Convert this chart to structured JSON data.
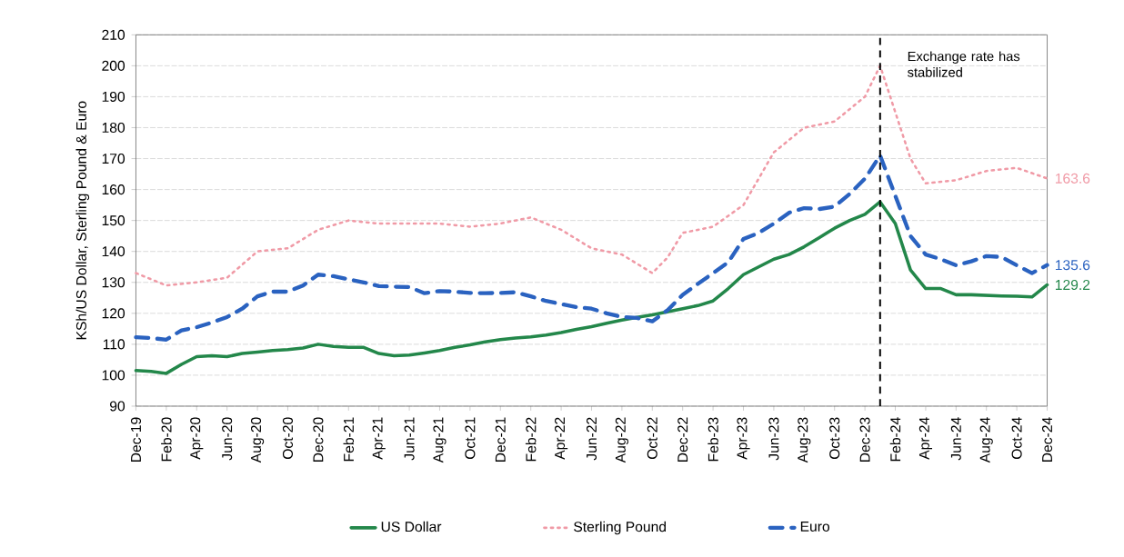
{
  "chart_data": {
    "type": "line",
    "ylabel": "KSh/US Dollar, Sterling Pound & Euro",
    "x": [
      "2019-12",
      "2020-01",
      "2020-02",
      "2020-03",
      "2020-04",
      "2020-05",
      "2020-06",
      "2020-07",
      "2020-08",
      "2020-09",
      "2020-10",
      "2020-11",
      "2020-12",
      "2021-01",
      "2021-02",
      "2021-03",
      "2021-04",
      "2021-05",
      "2021-06",
      "2021-07",
      "2021-08",
      "2021-09",
      "2021-10",
      "2021-11",
      "2021-12",
      "2022-01",
      "2022-02",
      "2022-03",
      "2022-04",
      "2022-05",
      "2022-06",
      "2022-07",
      "2022-08",
      "2022-09",
      "2022-10",
      "2022-11",
      "2022-12",
      "2023-01",
      "2023-02",
      "2023-03",
      "2023-04",
      "2023-05",
      "2023-06",
      "2023-07",
      "2023-08",
      "2023-09",
      "2023-10",
      "2023-11",
      "2023-12",
      "2024-01",
      "2024-02",
      "2024-03",
      "2024-04",
      "2024-05",
      "2024-06",
      "2024-07",
      "2024-08",
      "2024-09",
      "2024-10",
      "2024-11",
      "2024-12"
    ],
    "series": [
      {
        "name": "US Dollar",
        "color": "#23874a",
        "line_style": "solid",
        "values": [
          101.5,
          101.2,
          100.6,
          103.5,
          106,
          106.3,
          106,
          107,
          107.5,
          108,
          108.3,
          108.8,
          110,
          109.3,
          109,
          109,
          107,
          106.3,
          106.5,
          107.2,
          108,
          109,
          109.8,
          110.8,
          111.5,
          112,
          112.4,
          113,
          113.8,
          114.8,
          115.7,
          116.8,
          117.8,
          118.7,
          119.5,
          120.5,
          121.5,
          122.5,
          124,
          128,
          132.5,
          135,
          137.5,
          139,
          141.5,
          144.5,
          147.5,
          150,
          152,
          156,
          149,
          134,
          128,
          128,
          126,
          126,
          125.8,
          125.6,
          125.5,
          125.3,
          129.2
        ],
        "value_labels": [
          null,
          null,
          null,
          null,
          null,
          null,
          null,
          null,
          null,
          null,
          null,
          null,
          null,
          null,
          null,
          null,
          null,
          null,
          null,
          null,
          null,
          null,
          null,
          null,
          null,
          null,
          null,
          null,
          null,
          null,
          null,
          null,
          null,
          null,
          null,
          null,
          null,
          null,
          null,
          null,
          null,
          null,
          null,
          null,
          null,
          null,
          null,
          null,
          null,
          null,
          null,
          null,
          null,
          null,
          null,
          null,
          null,
          null,
          null,
          null,
          "129.2"
        ]
      },
      {
        "name": "Sterling Pound",
        "color": "#f09aa6",
        "line_style": "dotted",
        "x": [
          "2019-12",
          "2020-02",
          "2020-04",
          "2020-06",
          "2020-08",
          "2020-10",
          "2020-12",
          "2021-02",
          "2021-04",
          "2021-06",
          "2021-08",
          "2021-10",
          "2021-12",
          "2022-02",
          "2022-04",
          "2022-06",
          "2022-08",
          "2022-10",
          "2022-11",
          "2022-12",
          "2023-02",
          "2023-04",
          "2023-06",
          "2023-08",
          "2023-10",
          "2023-12",
          "2024-01",
          "2024-02",
          "2024-03",
          "2024-04",
          "2024-06",
          "2024-08",
          "2024-10",
          "2024-12"
        ],
        "values": [
          133,
          129,
          130,
          131.5,
          140,
          141,
          147,
          150,
          149,
          149,
          149,
          148,
          149,
          151,
          147,
          141,
          139,
          133,
          138,
          146,
          148,
          155,
          172,
          180,
          182,
          190,
          200,
          185,
          170,
          162,
          163,
          166,
          167,
          163.6
        ],
        "value_labels": [
          null,
          null,
          null,
          null,
          null,
          null,
          null,
          null,
          null,
          null,
          null,
          null,
          null,
          null,
          null,
          null,
          null,
          null,
          null,
          null,
          null,
          null,
          null,
          null,
          null,
          null,
          null,
          null,
          null,
          null,
          null,
          null,
          null,
          "163.6"
        ]
      },
      {
        "name": "Euro",
        "color": "#2a62c0",
        "line_style": "dashed",
        "values": [
          112.3,
          112,
          111.5,
          114.5,
          115.5,
          117,
          118.8,
          121.5,
          125.5,
          127,
          127,
          129,
          132.5,
          132,
          131,
          130,
          128.8,
          128.6,
          128.5,
          126.5,
          127.2,
          127,
          126.6,
          126.5,
          126.6,
          126.8,
          125.5,
          124,
          123,
          122,
          121.5,
          120,
          118.8,
          118.5,
          117.4,
          121,
          126,
          129.5,
          133,
          136.5,
          144,
          146,
          149,
          152.5,
          154,
          153.7,
          154.5,
          158.6,
          163.5,
          171,
          158,
          145,
          139,
          137.5,
          135.5,
          136.8,
          138.5,
          138.2,
          135.5,
          133,
          135.6
        ],
        "value_labels": [
          null,
          null,
          null,
          null,
          null,
          null,
          null,
          null,
          null,
          null,
          null,
          null,
          null,
          null,
          null,
          null,
          null,
          null,
          null,
          null,
          null,
          null,
          null,
          null,
          null,
          null,
          null,
          null,
          null,
          null,
          null,
          null,
          null,
          null,
          null,
          null,
          null,
          null,
          null,
          null,
          null,
          null,
          null,
          null,
          null,
          null,
          null,
          null,
          null,
          null,
          null,
          null,
          null,
          null,
          null,
          null,
          null,
          null,
          null,
          null,
          "135.6"
        ]
      }
    ],
    "xlim": [
      "2019-12",
      "2024-12"
    ],
    "xticks": [
      {
        "value": "2019-12",
        "label": "Dec-19"
      },
      {
        "value": "2020-02",
        "label": "Feb-20"
      },
      {
        "value": "2020-04",
        "label": "Apr-20"
      },
      {
        "value": "2020-06",
        "label": "Jun-20"
      },
      {
        "value": "2020-08",
        "label": "Aug-20"
      },
      {
        "value": "2020-10",
        "label": "Oct-20"
      },
      {
        "value": "2020-12",
        "label": "Dec-20"
      },
      {
        "value": "2021-02",
        "label": "Feb-21"
      },
      {
        "value": "2021-04",
        "label": "Apr-21"
      },
      {
        "value": "2021-06",
        "label": "Jun-21"
      },
      {
        "value": "2021-08",
        "label": "Aug-21"
      },
      {
        "value": "2021-10",
        "label": "Oct-21"
      },
      {
        "value": "2021-12",
        "label": "Dec-21"
      },
      {
        "value": "2022-02",
        "label": "Feb-22"
      },
      {
        "value": "2022-04",
        "label": "Apr-22"
      },
      {
        "value": "2022-06",
        "label": "Jun-22"
      },
      {
        "value": "2022-08",
        "label": "Aug-22"
      },
      {
        "value": "2022-10",
        "label": "Oct-22"
      },
      {
        "value": "2022-12",
        "label": "Dec-22"
      },
      {
        "value": "2023-02",
        "label": "Feb-23"
      },
      {
        "value": "2023-04",
        "label": "Apr-23"
      },
      {
        "value": "2023-06",
        "label": "Jun-23"
      },
      {
        "value": "2023-08",
        "label": "Aug-23"
      },
      {
        "value": "2023-10",
        "label": "Oct-23"
      },
      {
        "value": "2023-12",
        "label": "Dec-23"
      },
      {
        "value": "2024-02",
        "label": "Feb-24"
      },
      {
        "value": "2024-04",
        "label": "Apr-24"
      },
      {
        "value": "2024-06",
        "label": "Jun-24"
      },
      {
        "value": "2024-08",
        "label": "Aug-24"
      },
      {
        "value": "2024-10",
        "label": "Oct-24"
      },
      {
        "value": "2024-12",
        "label": "Dec-24"
      }
    ],
    "ylim": [
      90,
      210
    ],
    "yticks": [
      90,
      100,
      110,
      120,
      130,
      140,
      150,
      160,
      170,
      180,
      190,
      200,
      210
    ],
    "ref_lines": [
      {
        "axis": "x",
        "value": "2024-01",
        "label": "Exchange rate has stabilized",
        "color": "#000000",
        "line_style": "dashed"
      }
    ],
    "grid": "y",
    "legend": "bottom"
  }
}
